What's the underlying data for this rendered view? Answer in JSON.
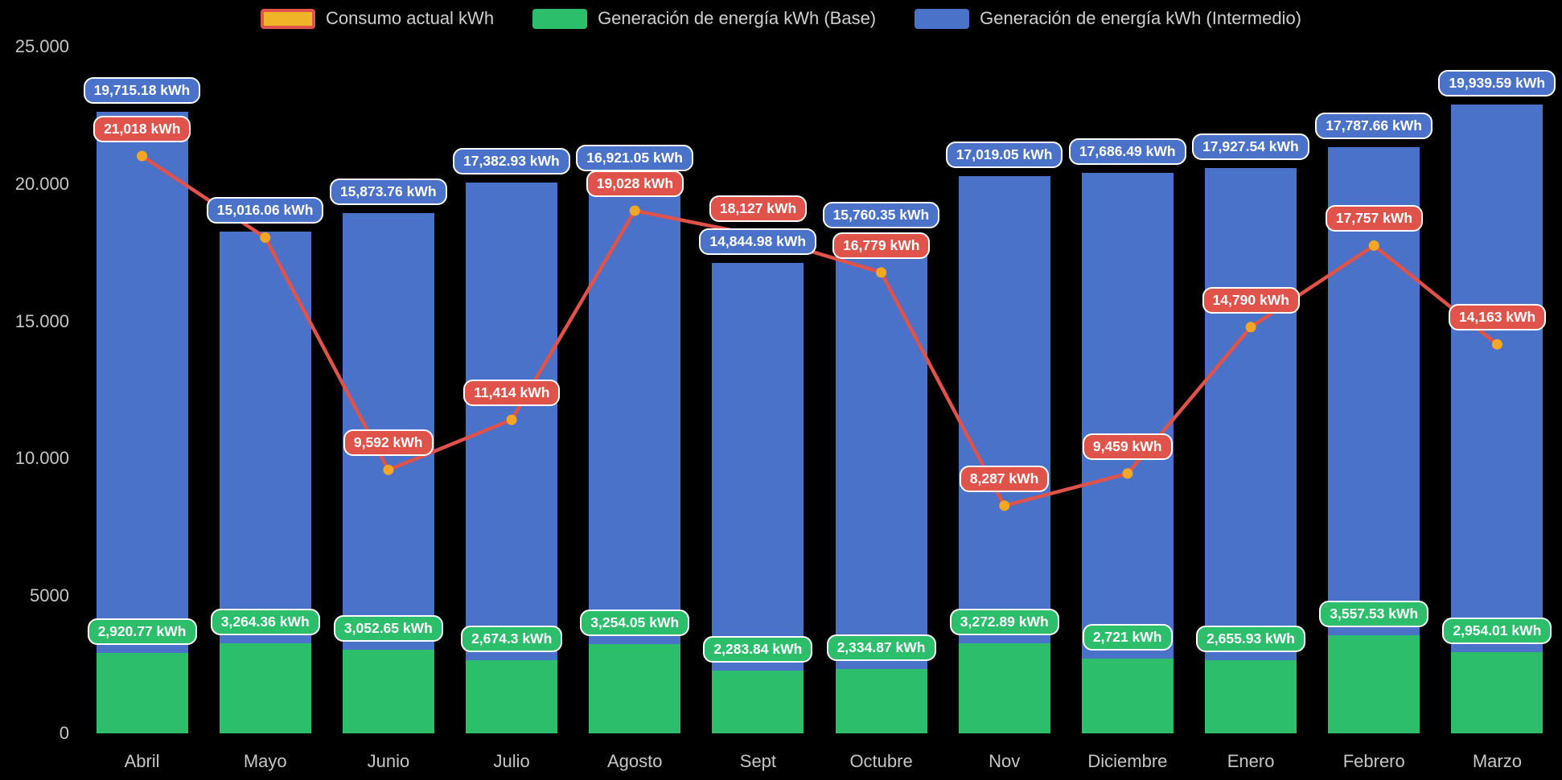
{
  "legend": {
    "items": [
      {
        "label": "Consumo actual kWh",
        "fill": "#f0b429",
        "border": "#e0534a"
      },
      {
        "label": "Generación de energía kWh (Base)",
        "fill": "#2cbe6a",
        "border": ""
      },
      {
        "label": "Generación de energía kWh (Intermedio)",
        "fill": "#4a72c8",
        "border": ""
      }
    ]
  },
  "chart_data": {
    "type": "bar",
    "stacked": true,
    "background": "#000000",
    "title": "",
    "xlabel": "",
    "ylabel": "",
    "grid": false,
    "legend_position": "top",
    "ylim": [
      0,
      25000
    ],
    "yticks": [
      {
        "value": 25000,
        "label": "25.000"
      },
      {
        "value": 20000,
        "label": "20.000"
      },
      {
        "value": 15000,
        "label": "15.000"
      },
      {
        "value": 10000,
        "label": "10.000"
      },
      {
        "value": 5000,
        "label": "5000"
      },
      {
        "value": 0,
        "label": "0"
      }
    ],
    "categories": [
      "Abril",
      "Mayo",
      "Junio",
      "Julio",
      "Agosto",
      "Sept",
      "Octubre",
      "Nov",
      "Diciembre",
      "Enero",
      "Febrero",
      "Marzo"
    ],
    "series": [
      {
        "name": "Generación de energía kWh (Base)",
        "type": "bar",
        "color": "#2cbe6a",
        "values": [
          2920.77,
          3264.36,
          3052.65,
          2674.3,
          3254.05,
          2283.84,
          2334.87,
          3272.89,
          2721,
          2655.93,
          3557.53,
          2954.01
        ],
        "labels": [
          "2,920.77 kWh",
          "3,264.36 kWh",
          "3,052.65 kWh",
          "2,674.3 kWh",
          "3,254.05 kWh",
          "2,283.84 kWh",
          "2,334.87 kWh",
          "3,272.89 kWh",
          "2,721 kWh",
          "2,655.93 kWh",
          "3,557.53 kWh",
          "2,954.01 kWh"
        ]
      },
      {
        "name": "Generación de energía kWh (Intermedio)",
        "type": "bar",
        "color": "#4a72c8",
        "values": [
          19715.18,
          15016.06,
          15873.76,
          17382.93,
          16921.05,
          14844.98,
          15760.35,
          17019.05,
          17686.49,
          17927.54,
          17787.66,
          19939.59
        ],
        "labels": [
          "19,715.18 kWh",
          "15,016.06 kWh",
          "15,873.76 kWh",
          "17,382.93 kWh",
          "16,921.05 kWh",
          "14,844.98 kWh",
          "15,760.35 kWh",
          "17,019.05 kWh",
          "17,686.49 kWh",
          "17,927.54 kWh",
          "17,787.66 kWh",
          "19,939.59 kWh"
        ]
      },
      {
        "name": "Consumo actual kWh",
        "type": "line",
        "color": "#e0534a",
        "point_color": "#f6a623",
        "values": [
          21018,
          18050,
          9592,
          11414,
          19028,
          18127,
          16779,
          8287,
          9459,
          14790,
          17757,
          14163
        ],
        "labels": [
          "21,018 kWh",
          null,
          "9,592 kWh",
          "11,414 kWh",
          "19,028 kWh",
          "18,127 kWh",
          "16,779 kWh",
          "8,287 kWh",
          "9,459 kWh",
          "14,790 kWh",
          "17,757 kWh",
          "14,163 kWh"
        ]
      }
    ]
  }
}
